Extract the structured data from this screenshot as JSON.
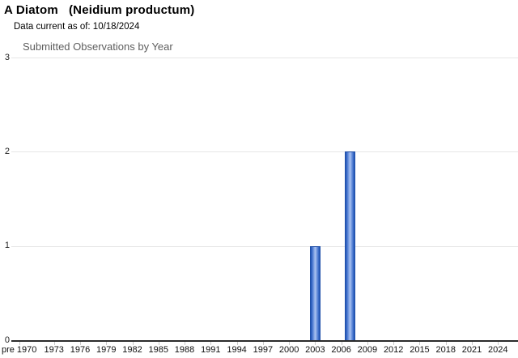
{
  "page": {
    "title": "A Diatom   (Neidium productum)",
    "subtitle": "Data current as of: 10/18/2024"
  },
  "chart_data": {
    "type": "bar",
    "title": "Submitted Observations by Year",
    "xlabel": "",
    "ylabel": "",
    "legend": "none",
    "grid": true,
    "ylim": [
      0,
      3
    ],
    "y_ticks": [
      0,
      1,
      2,
      3
    ],
    "x_range_years": [
      1968.1,
      2026.3
    ],
    "x_ticks": [
      {
        "label": "pre 1970",
        "year": 1969
      },
      {
        "label": "1973",
        "year": 1973
      },
      {
        "label": "1976",
        "year": 1976
      },
      {
        "label": "1979",
        "year": 1979
      },
      {
        "label": "1982",
        "year": 1982
      },
      {
        "label": "1985",
        "year": 1985
      },
      {
        "label": "1988",
        "year": 1988
      },
      {
        "label": "1991",
        "year": 1991
      },
      {
        "label": "1994",
        "year": 1994
      },
      {
        "label": "1997",
        "year": 1997
      },
      {
        "label": "2000",
        "year": 2000
      },
      {
        "label": "2003",
        "year": 2003
      },
      {
        "label": "2006",
        "year": 2006
      },
      {
        "label": "2009",
        "year": 2009
      },
      {
        "label": "2012",
        "year": 2012
      },
      {
        "label": "2015",
        "year": 2015
      },
      {
        "label": "2018",
        "year": 2018
      },
      {
        "label": "2021",
        "year": 2021
      },
      {
        "label": "2024",
        "year": 2024
      }
    ],
    "bars": [
      {
        "year": 2003,
        "value": 1
      },
      {
        "year": 2007,
        "value": 2
      }
    ],
    "colors": {
      "bar_fill": "#3366cc",
      "bar_edge": "#1b4aa2",
      "bar_mid": "#2f62c2",
      "bar_light": "#7da0e4",
      "bar_highlight": "#adc4f0",
      "gridline": "#e6e6e6",
      "axis_line": "#2b2b2b",
      "tick": "#c9c9c9",
      "chart_title_text": "#5e5e5e"
    }
  }
}
